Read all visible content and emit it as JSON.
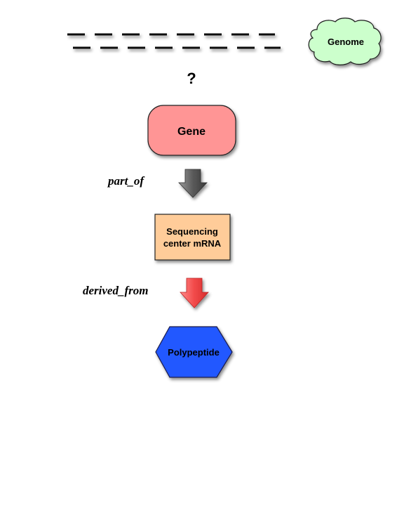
{
  "diagram": {
    "genome": {
      "label": "Genome",
      "fill": "#ccffcc"
    },
    "unknown_marker": "?",
    "gene": {
      "label": "Gene",
      "fill": "#ff9595"
    },
    "relation_1": {
      "label": "part_of",
      "arrow_color": "#6e6e6e"
    },
    "mrna": {
      "line1": "Sequencing",
      "line2": "center mRNA",
      "fill": "#ffcc99"
    },
    "relation_2": {
      "label": "derived_from",
      "arrow_color": "#f24a4a"
    },
    "polypeptide": {
      "label": "Polypeptide",
      "fill": "#2358ff"
    }
  }
}
